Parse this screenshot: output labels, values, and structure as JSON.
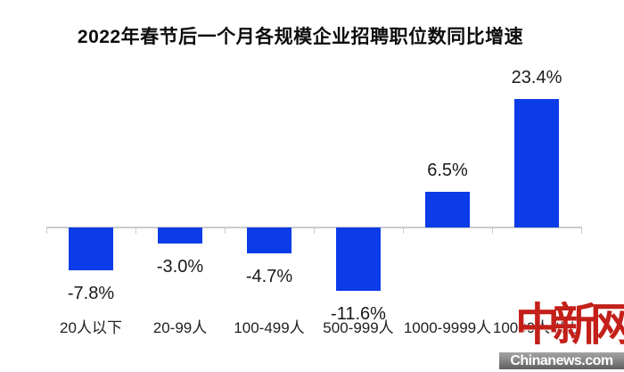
{
  "chart_data": {
    "type": "bar",
    "title": "2022年春节后一个月各规模企业招聘职位数同比增速",
    "categories": [
      "20人以下",
      "20-99人",
      "100-499人",
      "500-999人",
      "1000-9999人",
      "10000人以上"
    ],
    "values": [
      -7.8,
      -3.0,
      -4.7,
      -11.6,
      6.5,
      23.4
    ],
    "value_labels": [
      "-7.8%",
      "-3.0%",
      "-4.7%",
      "-11.6%",
      "6.5%",
      "23.4%"
    ],
    "unit": "%",
    "bar_color": "#0b3ce8",
    "axis_color": "#cccccc",
    "value_label_color": "#1a1a1a",
    "category_label_color": "#222222",
    "title_color": "#0d0d0d",
    "ylim": [
      -11.6,
      23.4
    ],
    "grid": false,
    "legend": false,
    "baseline": 0
  },
  "watermark": {
    "logo_text": "中新网",
    "logo_color": "#c3201a",
    "site_text": "Chinanews.com",
    "site_text_color": "#ffffff"
  }
}
